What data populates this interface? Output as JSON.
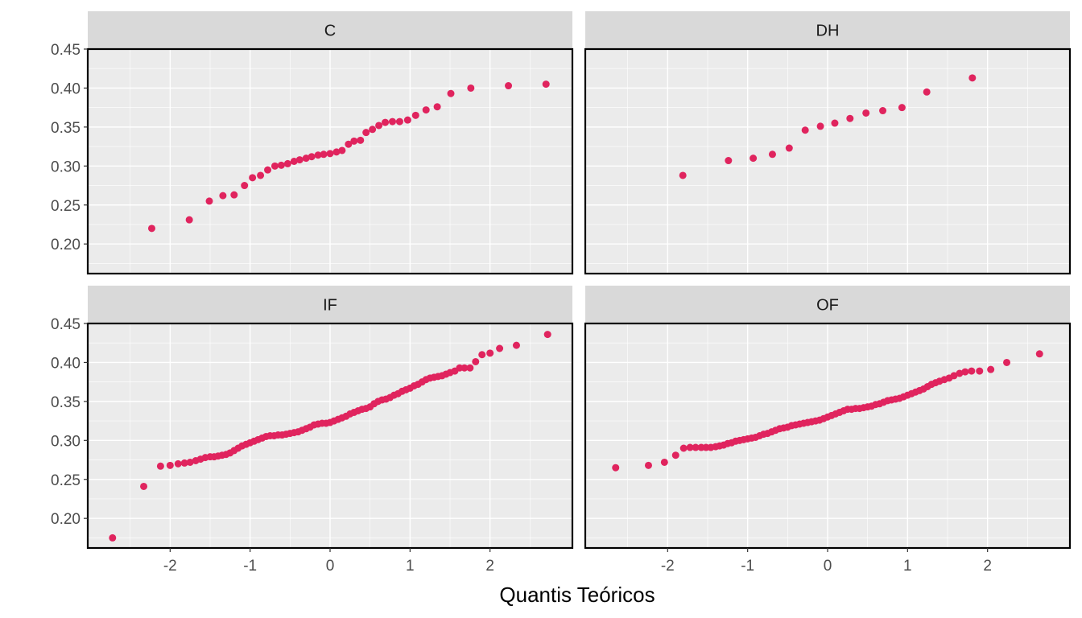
{
  "chart_data": {
    "type": "scatter",
    "xlabel": "Quantis Teóricos",
    "ylabel": "",
    "xlim": [
      -3.03,
      3.03
    ],
    "ylim": [
      0.162,
      0.45
    ],
    "x_ticks": [
      -2,
      -1,
      0,
      1,
      2
    ],
    "x_tick_labels": [
      "-2",
      "-1",
      "0",
      "1",
      "2"
    ],
    "y_ticks": [
      0.2,
      0.25,
      0.3,
      0.35,
      0.4,
      0.45
    ],
    "y_tick_labels": [
      "0.20",
      "0.25",
      "0.30",
      "0.35",
      "0.40",
      "0.45"
    ],
    "grid": true,
    "colors": {
      "point": "#e0245e",
      "panel_bg": "#ebebeb",
      "strip_bg": "#d9d9d9",
      "grid": "#ffffff",
      "border": "#000000"
    },
    "panels": [
      {
        "title": "C",
        "points": [
          [
            -2.23,
            0.22
          ],
          [
            -1.76,
            0.231
          ],
          [
            -1.51,
            0.255
          ],
          [
            -1.34,
            0.262
          ],
          [
            -1.2,
            0.263
          ],
          [
            -1.07,
            0.275
          ],
          [
            -0.97,
            0.285
          ],
          [
            -0.87,
            0.288
          ],
          [
            -0.78,
            0.295
          ],
          [
            -0.69,
            0.3
          ],
          [
            -0.61,
            0.301
          ],
          [
            -0.53,
            0.303
          ],
          [
            -0.45,
            0.306
          ],
          [
            -0.38,
            0.308
          ],
          [
            -0.3,
            0.31
          ],
          [
            -0.23,
            0.312
          ],
          [
            -0.15,
            0.314
          ],
          [
            -0.08,
            0.315
          ],
          [
            0.0,
            0.316
          ],
          [
            0.08,
            0.318
          ],
          [
            0.15,
            0.32
          ],
          [
            0.23,
            0.328
          ],
          [
            0.3,
            0.332
          ],
          [
            0.38,
            0.333
          ],
          [
            0.45,
            0.343
          ],
          [
            0.53,
            0.347
          ],
          [
            0.61,
            0.352
          ],
          [
            0.69,
            0.356
          ],
          [
            0.78,
            0.357
          ],
          [
            0.87,
            0.357
          ],
          [
            0.97,
            0.359
          ],
          [
            1.07,
            0.365
          ],
          [
            1.2,
            0.372
          ],
          [
            1.34,
            0.376
          ],
          [
            1.51,
            0.393
          ],
          [
            1.76,
            0.4
          ],
          [
            2.23,
            0.403
          ],
          [
            2.7,
            0.405
          ]
        ]
      },
      {
        "title": "DH",
        "points": [
          [
            -1.81,
            0.288
          ],
          [
            -1.24,
            0.307
          ],
          [
            -0.93,
            0.31
          ],
          [
            -0.69,
            0.315
          ],
          [
            -0.48,
            0.323
          ],
          [
            -0.28,
            0.346
          ],
          [
            -0.09,
            0.351
          ],
          [
            0.09,
            0.355
          ],
          [
            0.28,
            0.361
          ],
          [
            0.48,
            0.368
          ],
          [
            0.69,
            0.371
          ],
          [
            0.93,
            0.375
          ],
          [
            1.24,
            0.395
          ],
          [
            1.81,
            0.413
          ]
        ]
      },
      {
        "title": "IF",
        "points": [
          [
            -2.72,
            0.175
          ],
          [
            -2.33,
            0.241
          ],
          [
            -2.12,
            0.267
          ],
          [
            -2.0,
            0.268
          ],
          [
            -1.9,
            0.27
          ],
          [
            -1.82,
            0.271
          ],
          [
            -1.75,
            0.272
          ],
          [
            -1.68,
            0.274
          ],
          [
            -1.62,
            0.276
          ],
          [
            -1.56,
            0.278
          ],
          [
            -1.5,
            0.279
          ],
          [
            -1.45,
            0.279
          ],
          [
            -1.4,
            0.28
          ],
          [
            -1.35,
            0.281
          ],
          [
            -1.3,
            0.282
          ],
          [
            -1.25,
            0.284
          ],
          [
            -1.2,
            0.287
          ],
          [
            -1.15,
            0.29
          ],
          [
            -1.1,
            0.293
          ],
          [
            -1.05,
            0.295
          ],
          [
            -1.0,
            0.297
          ],
          [
            -0.95,
            0.299
          ],
          [
            -0.9,
            0.301
          ],
          [
            -0.85,
            0.303
          ],
          [
            -0.8,
            0.305
          ],
          [
            -0.75,
            0.306
          ],
          [
            -0.7,
            0.306
          ],
          [
            -0.65,
            0.307
          ],
          [
            -0.6,
            0.307
          ],
          [
            -0.55,
            0.308
          ],
          [
            -0.5,
            0.309
          ],
          [
            -0.45,
            0.31
          ],
          [
            -0.4,
            0.311
          ],
          [
            -0.35,
            0.313
          ],
          [
            -0.3,
            0.315
          ],
          [
            -0.25,
            0.317
          ],
          [
            -0.2,
            0.32
          ],
          [
            -0.15,
            0.321
          ],
          [
            -0.1,
            0.322
          ],
          [
            -0.05,
            0.322
          ],
          [
            0.0,
            0.323
          ],
          [
            0.05,
            0.325
          ],
          [
            0.1,
            0.327
          ],
          [
            0.15,
            0.329
          ],
          [
            0.2,
            0.331
          ],
          [
            0.25,
            0.334
          ],
          [
            0.3,
            0.336
          ],
          [
            0.35,
            0.338
          ],
          [
            0.4,
            0.34
          ],
          [
            0.45,
            0.341
          ],
          [
            0.5,
            0.343
          ],
          [
            0.55,
            0.347
          ],
          [
            0.6,
            0.35
          ],
          [
            0.65,
            0.352
          ],
          [
            0.7,
            0.353
          ],
          [
            0.75,
            0.355
          ],
          [
            0.8,
            0.358
          ],
          [
            0.85,
            0.36
          ],
          [
            0.9,
            0.363
          ],
          [
            0.95,
            0.365
          ],
          [
            1.0,
            0.367
          ],
          [
            1.05,
            0.37
          ],
          [
            1.1,
            0.372
          ],
          [
            1.15,
            0.375
          ],
          [
            1.2,
            0.378
          ],
          [
            1.25,
            0.38
          ],
          [
            1.3,
            0.381
          ],
          [
            1.35,
            0.382
          ],
          [
            1.4,
            0.383
          ],
          [
            1.45,
            0.385
          ],
          [
            1.5,
            0.387
          ],
          [
            1.56,
            0.389
          ],
          [
            1.62,
            0.393
          ],
          [
            1.68,
            0.393
          ],
          [
            1.75,
            0.393
          ],
          [
            1.82,
            0.401
          ],
          [
            1.9,
            0.41
          ],
          [
            2.0,
            0.412
          ],
          [
            2.12,
            0.418
          ],
          [
            2.33,
            0.422
          ],
          [
            2.72,
            0.436
          ]
        ]
      },
      {
        "title": "OF",
        "points": [
          [
            -2.65,
            0.265
          ],
          [
            -2.24,
            0.268
          ],
          [
            -2.04,
            0.272
          ],
          [
            -1.9,
            0.281
          ],
          [
            -1.8,
            0.29
          ],
          [
            -1.72,
            0.291
          ],
          [
            -1.65,
            0.291
          ],
          [
            -1.58,
            0.291
          ],
          [
            -1.52,
            0.291
          ],
          [
            -1.46,
            0.291
          ],
          [
            -1.4,
            0.292
          ],
          [
            -1.35,
            0.293
          ],
          [
            -1.3,
            0.294
          ],
          [
            -1.25,
            0.296
          ],
          [
            -1.2,
            0.297
          ],
          [
            -1.15,
            0.299
          ],
          [
            -1.1,
            0.3
          ],
          [
            -1.05,
            0.301
          ],
          [
            -1.0,
            0.302
          ],
          [
            -0.95,
            0.303
          ],
          [
            -0.9,
            0.304
          ],
          [
            -0.85,
            0.306
          ],
          [
            -0.8,
            0.308
          ],
          [
            -0.75,
            0.309
          ],
          [
            -0.7,
            0.311
          ],
          [
            -0.65,
            0.313
          ],
          [
            -0.6,
            0.315
          ],
          [
            -0.55,
            0.316
          ],
          [
            -0.5,
            0.317
          ],
          [
            -0.45,
            0.319
          ],
          [
            -0.4,
            0.32
          ],
          [
            -0.35,
            0.321
          ],
          [
            -0.3,
            0.322
          ],
          [
            -0.25,
            0.323
          ],
          [
            -0.2,
            0.324
          ],
          [
            -0.15,
            0.325
          ],
          [
            -0.1,
            0.326
          ],
          [
            -0.05,
            0.328
          ],
          [
            0.0,
            0.33
          ],
          [
            0.05,
            0.332
          ],
          [
            0.1,
            0.334
          ],
          [
            0.15,
            0.336
          ],
          [
            0.2,
            0.338
          ],
          [
            0.25,
            0.34
          ],
          [
            0.3,
            0.34
          ],
          [
            0.35,
            0.341
          ],
          [
            0.4,
            0.341
          ],
          [
            0.45,
            0.342
          ],
          [
            0.5,
            0.343
          ],
          [
            0.55,
            0.344
          ],
          [
            0.6,
            0.346
          ],
          [
            0.65,
            0.347
          ],
          [
            0.7,
            0.349
          ],
          [
            0.75,
            0.351
          ],
          [
            0.8,
            0.352
          ],
          [
            0.85,
            0.353
          ],
          [
            0.9,
            0.354
          ],
          [
            0.95,
            0.356
          ],
          [
            1.0,
            0.358
          ],
          [
            1.05,
            0.36
          ],
          [
            1.1,
            0.362
          ],
          [
            1.15,
            0.364
          ],
          [
            1.2,
            0.366
          ],
          [
            1.25,
            0.369
          ],
          [
            1.3,
            0.372
          ],
          [
            1.35,
            0.374
          ],
          [
            1.4,
            0.376
          ],
          [
            1.46,
            0.378
          ],
          [
            1.52,
            0.38
          ],
          [
            1.58,
            0.383
          ],
          [
            1.65,
            0.386
          ],
          [
            1.72,
            0.388
          ],
          [
            1.8,
            0.389
          ],
          [
            1.9,
            0.389
          ],
          [
            2.04,
            0.391
          ],
          [
            2.24,
            0.4
          ],
          [
            2.65,
            0.411
          ]
        ]
      }
    ]
  }
}
